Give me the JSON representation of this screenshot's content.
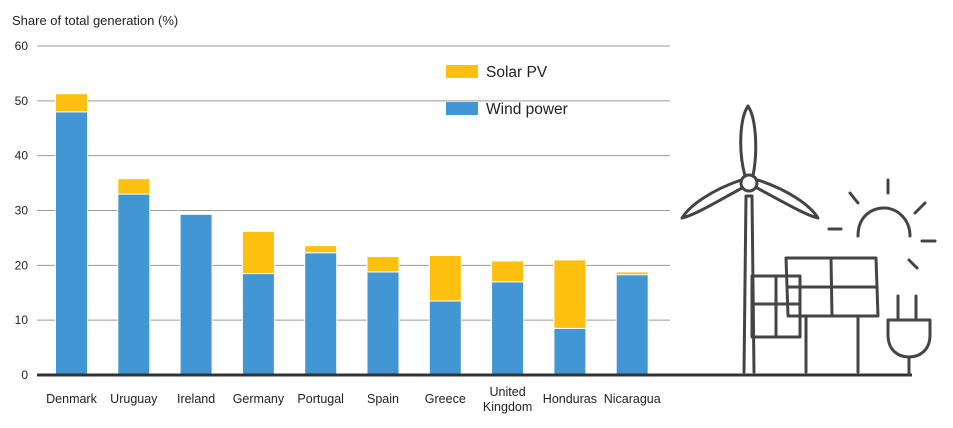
{
  "chart_data": {
    "type": "bar",
    "stacked": true,
    "ylabel": "Share of total generation (%)",
    "ylim": [
      0,
      60
    ],
    "yticks": [
      0,
      10,
      20,
      30,
      40,
      50,
      60
    ],
    "grid": true,
    "legend_position": "top-right",
    "categories": [
      "Denmark",
      "Uruguay",
      "Ireland",
      "Germany",
      "Portugal",
      "Spain",
      "Greece",
      "United Kingdom",
      "Honduras",
      "Nicaragua"
    ],
    "series": [
      {
        "name": "Wind power",
        "color": "#4296d3",
        "values": [
          48,
          33,
          29.3,
          18.5,
          22.3,
          18.8,
          13.5,
          17,
          8.5,
          18.3
        ]
      },
      {
        "name": "Solar PV",
        "color": "#fdc00f",
        "values": [
          3.3,
          2.8,
          0,
          7.7,
          1.3,
          2.8,
          8.3,
          3.8,
          12.5,
          0.5
        ]
      }
    ]
  },
  "illustration": {
    "icons": [
      "wind-turbine-icon",
      "solar-panel-icon",
      "sun-icon",
      "power-plug-icon"
    ]
  }
}
